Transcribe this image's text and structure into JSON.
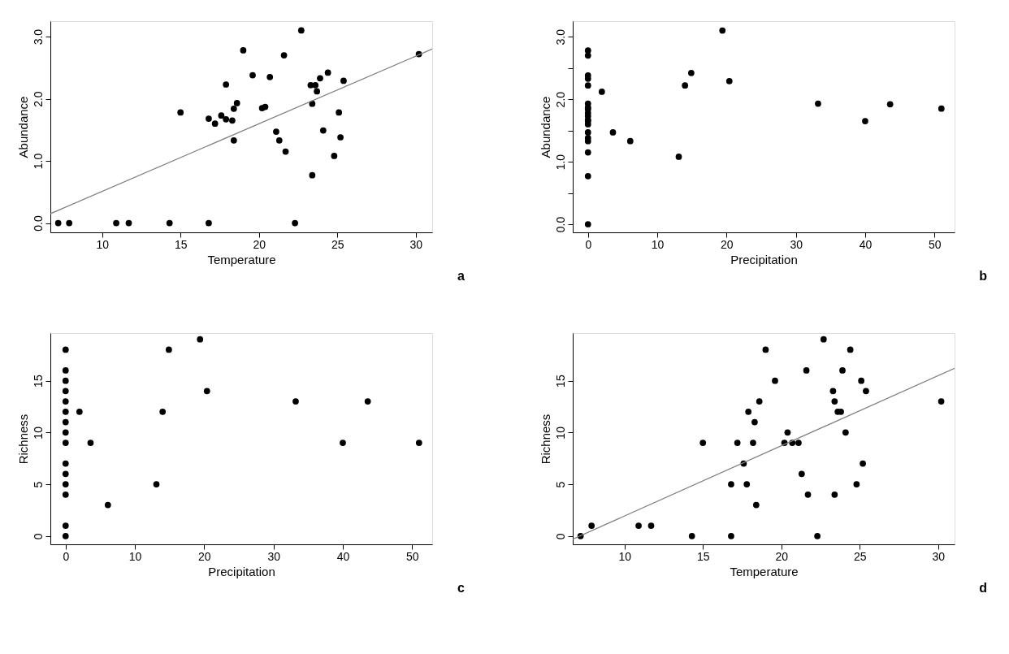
{
  "chart_data": [
    {
      "type": "scatter",
      "xlabel": "Temperature",
      "ylabel": "Abundance",
      "annotations": [
        "a"
      ],
      "marker": "circle",
      "grid": false,
      "legend": false,
      "xlim": [
        6.7,
        31.05
      ],
      "ylim": [
        -0.15,
        3.25
      ],
      "xticks": [
        10,
        15,
        20,
        25,
        30
      ],
      "yticks": [
        {
          "value": 0,
          "label": "0.0"
        },
        {
          "value": 1,
          "label": "1.0"
        },
        {
          "value": 2,
          "label": "2.0"
        },
        {
          "value": 3,
          "label": "3.0"
        }
      ],
      "series": [
        {
          "color": "#000000",
          "x": [
            7.2,
            7.9,
            10.9,
            11.7,
            14.3,
            16.8,
            22.3,
            15,
            16.8,
            17.2,
            17.6,
            17.9,
            17.9,
            18.3,
            18.4,
            18.4,
            18.6,
            19.0,
            19.6,
            20.2,
            20.4,
            20.7,
            21.1,
            21.3,
            21.6,
            21.7,
            22.7,
            23.3,
            23.4,
            23.4,
            23.6,
            23.7,
            23.9,
            24.1,
            24.4,
            24.8,
            25.1,
            25.2,
            25.4,
            30.2
          ],
          "values": [
            0,
            0,
            0,
            0,
            0,
            0,
            0,
            1.78,
            1.68,
            1.6,
            1.73,
            1.67,
            2.23,
            1.65,
            1.33,
            1.84,
            1.93,
            2.78,
            2.38,
            1.85,
            1.87,
            2.35,
            1.47,
            1.33,
            2.7,
            1.15,
            3.1,
            2.22,
            1.92,
            0.77,
            2.22,
            2.12,
            2.33,
            1.49,
            2.42,
            1.08,
            1.78,
            1.38,
            2.29,
            2.72
          ]
        },
        {
          "type": "line",
          "marker": "none",
          "color": "#808080",
          "x": [
            6.7,
            31.05
          ],
          "values": [
            0.15,
            2.8
          ]
        }
      ]
    },
    {
      "type": "scatter",
      "xlabel": "Precipitation",
      "ylabel": "Abundance",
      "annotations": [
        "b"
      ],
      "marker": "circle",
      "grid": false,
      "legend": false,
      "xlim": [
        -2.2,
        52.9
      ],
      "ylim": [
        -0.13,
        3.25
      ],
      "xticks": [
        0,
        10,
        20,
        30,
        40,
        50
      ],
      "yticks": [
        {
          "value": 0,
          "label": "0.0"
        },
        {
          "value": 0.5,
          "label": null
        },
        {
          "value": 1,
          "label": "1.0"
        },
        {
          "value": 1.5,
          "label": null
        },
        {
          "value": 2,
          "label": "2.0"
        },
        {
          "value": 2.5,
          "label": null
        },
        {
          "value": 3,
          "label": "3.0"
        }
      ],
      "series": [
        {
          "color": "#000000",
          "x": [
            0,
            0,
            0,
            0,
            0,
            0,
            0,
            0,
            0,
            0,
            0,
            0,
            0,
            0,
            0,
            0,
            0,
            0,
            0,
            2,
            3.6,
            6.1,
            13.1,
            14,
            14.9,
            19.4,
            20.4,
            33.2,
            40,
            43.6,
            51
          ],
          "values": [
            0,
            0.77,
            1.15,
            1.33,
            1.38,
            1.47,
            1.6,
            1.65,
            1.67,
            1.73,
            1.78,
            1.84,
            1.87,
            1.93,
            2.22,
            2.33,
            2.38,
            2.7,
            2.78,
            2.12,
            1.47,
            1.33,
            1.08,
            2.22,
            2.42,
            3.1,
            2.29,
            1.93,
            1.65,
            1.92,
            1.85
          ]
        }
      ]
    },
    {
      "type": "scatter",
      "xlabel": "Precipitation",
      "ylabel": "Richness",
      "annotations": [
        "c"
      ],
      "marker": "circle",
      "grid": false,
      "legend": false,
      "xlim": [
        -2.2,
        52.9
      ],
      "ylim": [
        -0.8,
        19.6
      ],
      "xticks": [
        0,
        10,
        20,
        30,
        40,
        50
      ],
      "yticks": [
        0,
        5,
        10,
        15
      ],
      "series": [
        {
          "color": "#000000",
          "x": [
            0,
            0,
            0,
            0,
            0,
            0,
            0,
            0,
            0,
            0,
            0,
            0,
            0,
            0,
            0,
            2,
            3.6,
            6.1,
            13.1,
            14,
            14.9,
            19.4,
            20.4,
            33.2,
            40,
            43.6,
            51
          ],
          "values": [
            0,
            1,
            4,
            5,
            6,
            7,
            9,
            10,
            11,
            12,
            13,
            14,
            15,
            16,
            18,
            12,
            9,
            3,
            5,
            12,
            18,
            19,
            14,
            13,
            9,
            13,
            9
          ]
        }
      ]
    },
    {
      "type": "scatter",
      "xlabel": "Temperature",
      "ylabel": "Richness",
      "annotations": [
        "d"
      ],
      "marker": "circle",
      "grid": false,
      "legend": false,
      "xlim": [
        6.7,
        31.05
      ],
      "ylim": [
        -0.8,
        19.6
      ],
      "xticks": [
        10,
        15,
        20,
        25,
        30
      ],
      "yticks": [
        0,
        5,
        10,
        15
      ],
      "series": [
        {
          "color": "#000000",
          "x": [
            7.2,
            7.9,
            10.9,
            11.7,
            14.3,
            15,
            16.8,
            16.8,
            17.2,
            17.6,
            17.8,
            17.9,
            18.2,
            18.3,
            18.4,
            18.6,
            19,
            19.6,
            20.2,
            20.4,
            20.7,
            21.1,
            21.3,
            21.6,
            21.7,
            22.3,
            22.7,
            23.3,
            23.4,
            23.4,
            23.6,
            23.8,
            23.9,
            24.1,
            24.4,
            24.8,
            25.1,
            25.2,
            25.4,
            30.2
          ],
          "values": [
            0,
            1,
            1,
            1,
            0,
            9,
            5,
            0,
            9,
            7,
            5,
            12,
            9,
            11,
            3,
            13,
            18,
            15,
            9,
            10,
            9,
            9,
            6,
            16,
            4,
            0,
            19,
            14,
            13,
            4,
            12,
            12,
            16,
            10,
            18,
            5,
            15,
            7,
            14,
            13
          ]
        },
        {
          "type": "line",
          "marker": "none",
          "color": "#808080",
          "x": [
            6.7,
            31.05
          ],
          "values": [
            -0.3,
            16.2
          ]
        }
      ]
    }
  ]
}
